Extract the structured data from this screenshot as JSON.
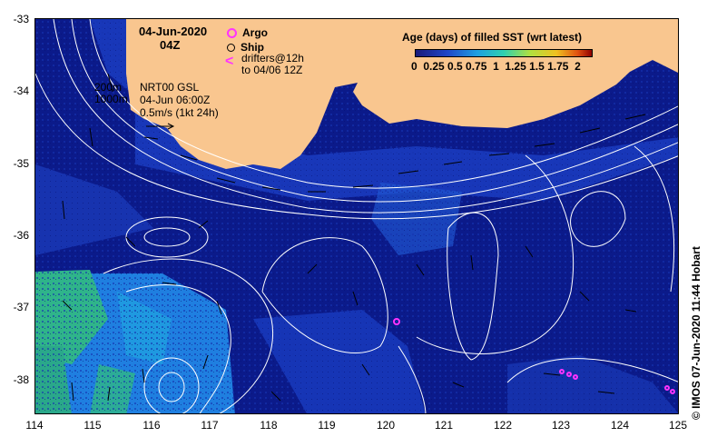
{
  "date": "04-Jun-2020",
  "hour": "04Z",
  "legend": {
    "argo": "Argo",
    "ship": "Ship",
    "drifters_line1": "drifters@12h",
    "drifters_line2": "to 04/06 12Z",
    "contours_200": "200m",
    "contours_1000": "1000m",
    "product_line1": "NRT00 GSL",
    "product_line2": "04-Jun 06:00Z",
    "scale_label": "0.5m/s (1kt 24h)"
  },
  "colorbar": {
    "title": "Age (days) of filled SST (wrt latest)",
    "ticks": "0  0.25 0.5 0.75  1  1.25 1.5 1.75  2"
  },
  "axes": {
    "lon_ticks": [
      "114",
      "115",
      "116",
      "117",
      "118",
      "119",
      "120",
      "121",
      "122",
      "123",
      "124",
      "125"
    ],
    "lat_ticks": [
      "-33",
      "-34",
      "-35",
      "-36",
      "-37",
      "-38"
    ]
  },
  "credit": "© IMOS 07-Jun-2020 11:44 Hobart",
  "colors": {
    "land": "#f9c68f",
    "ocean_deep": "#0b1a8a",
    "ocean_mid": "#1b3fc4",
    "ocean_light": "#1f7fe0",
    "ocean_green": "#2fb48a",
    "argo": "#ff33ff"
  }
}
